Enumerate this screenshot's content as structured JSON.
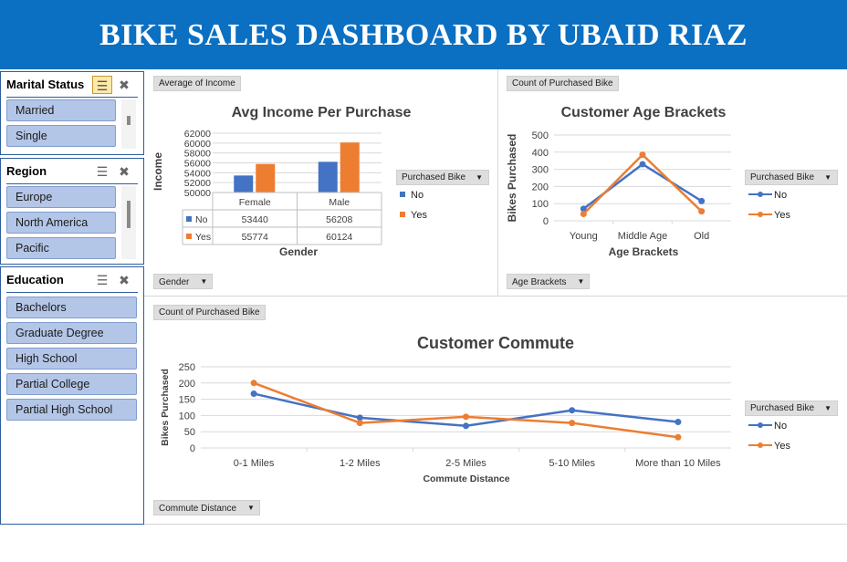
{
  "banner": {
    "title": "BIKE SALES DASHBOARD BY UBAID RIAZ"
  },
  "slicers": [
    {
      "title": "Marital Status",
      "items": [
        "Married",
        "Single"
      ]
    },
    {
      "title": "Region",
      "items": [
        "Europe",
        "North America",
        "Pacific"
      ]
    },
    {
      "title": "Education",
      "items": [
        "Bachelors",
        "Graduate Degree",
        "High School",
        "Partial College",
        "Partial High School"
      ]
    }
  ],
  "colors": {
    "no": "#4472c4",
    "yes": "#ed7d31",
    "banner": "#0b6fc2",
    "slicer_item": "#b4c6e7"
  },
  "legend": {
    "title": "Purchased Bike",
    "no": "No",
    "yes": "Yes"
  },
  "charts": {
    "income": {
      "field_button": "Average of Income",
      "axis_button": "Gender"
    },
    "age": {
      "field_button": "Count of Purchased Bike",
      "axis_button": "Age Brackets"
    },
    "commute": {
      "field_button": "Count of Purchased Bike",
      "axis_button": "Commute Distance"
    }
  },
  "chart_data": [
    {
      "type": "bar",
      "title": "Avg Income Per Purchase",
      "xlabel": "Gender",
      "ylabel": "Income",
      "categories": [
        "Female",
        "Male"
      ],
      "series": [
        {
          "name": "No",
          "values": [
            53440,
            56208
          ]
        },
        {
          "name": "Yes",
          "values": [
            55774,
            60124
          ]
        }
      ],
      "ylim": [
        50000,
        62000
      ],
      "yticks": [
        "50000",
        "52000",
        "54000",
        "56000",
        "58000",
        "60000",
        "62000"
      ],
      "data_table": true,
      "legend": "right"
    },
    {
      "type": "line",
      "title": "Customer Age Brackets",
      "xlabel": "Age Brackets",
      "ylabel": "Bikes Purchased",
      "categories": [
        "Young",
        "Middle Age",
        "Old"
      ],
      "series": [
        {
          "name": "No",
          "values": [
            70,
            330,
            115
          ]
        },
        {
          "name": "Yes",
          "values": [
            40,
            385,
            55
          ]
        }
      ],
      "ylim": [
        0,
        500
      ],
      "yticks": [
        "0",
        "100",
        "200",
        "300",
        "400",
        "500"
      ],
      "legend": "right"
    },
    {
      "type": "line",
      "title": "Customer Commute",
      "xlabel": "Commute Distance",
      "ylabel": "Bikes Purchased",
      "categories": [
        "0-1 Miles",
        "1-2 Miles",
        "2-5 Miles",
        "5-10 Miles",
        "More than 10 Miles"
      ],
      "series": [
        {
          "name": "No",
          "values": [
            167,
            93,
            68,
            116,
            80
          ]
        },
        {
          "name": "Yes",
          "values": [
            200,
            77,
            96,
            77,
            33
          ]
        }
      ],
      "ylim": [
        0,
        250
      ],
      "yticks": [
        "0",
        "50",
        "100",
        "150",
        "200",
        "250"
      ],
      "legend": "right"
    }
  ]
}
